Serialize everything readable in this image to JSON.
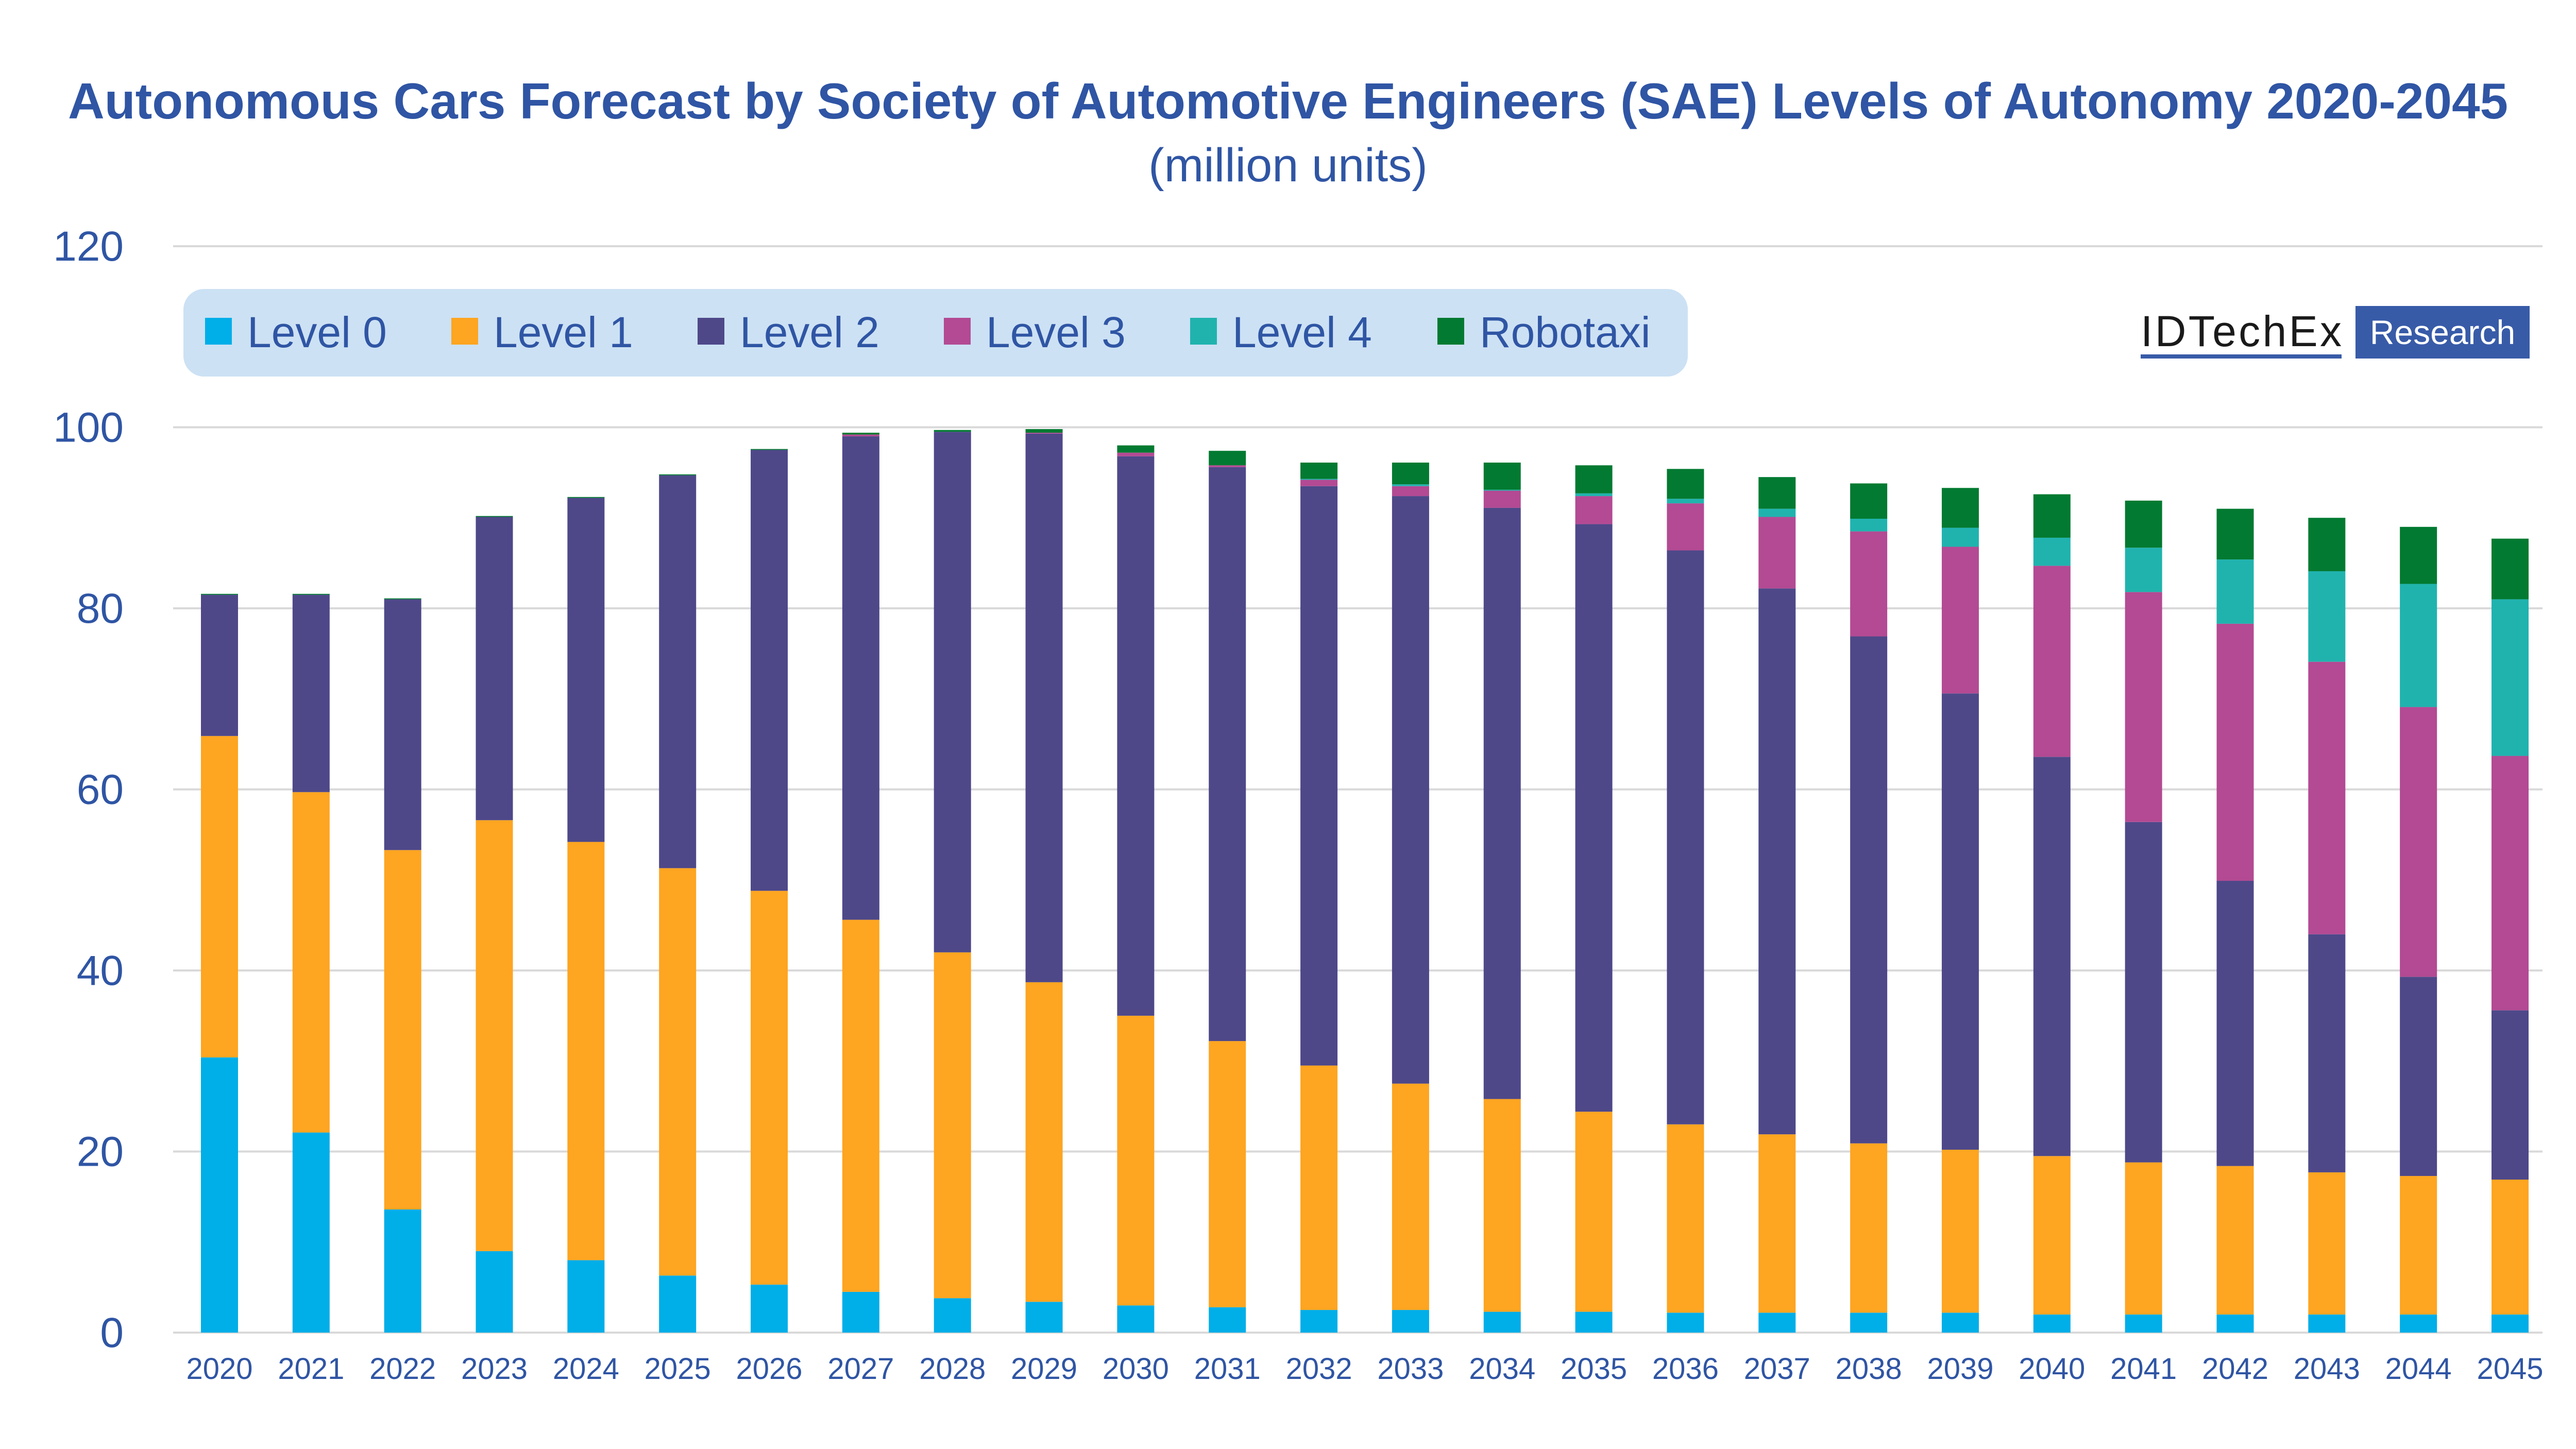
{
  "chart_data": {
    "type": "bar",
    "stacked": true,
    "title": "Autonomous Cars Forecast by Society of Automotive Engineers (SAE) Levels of Autonomy 2020-2045",
    "subtitle": "(million units)",
    "xlabel": "",
    "ylabel": "",
    "ylim": [
      0,
      120
    ],
    "yticks": [
      "0",
      "20",
      "40",
      "60",
      "80",
      "100",
      "120"
    ],
    "grid": true,
    "legend_position": "top-left",
    "categories": [
      "2020",
      "2021",
      "2022",
      "2023",
      "2024",
      "2025",
      "2026",
      "2027",
      "2028",
      "2029",
      "2030",
      "2031",
      "2032",
      "2033",
      "2034",
      "2035",
      "2036",
      "2037",
      "2038",
      "2039",
      "2040",
      "2041",
      "2042",
      "2043",
      "2044",
      "2045"
    ],
    "series": [
      {
        "name": "Level 0",
        "color": "#00aee8",
        "values": [
          30.4,
          22.1,
          13.6,
          9.0,
          8.0,
          6.3,
          5.3,
          4.5,
          3.8,
          3.4,
          3.0,
          2.8,
          2.5,
          2.5,
          2.3,
          2.3,
          2.2,
          2.2,
          2.2,
          2.2,
          2.0,
          2.0,
          2.0,
          2.0,
          2.0,
          2.0
        ]
      },
      {
        "name": "Level 1",
        "color": "#fea521",
        "values": [
          35.5,
          37.6,
          39.7,
          47.6,
          46.2,
          45.0,
          43.5,
          41.1,
          38.2,
          35.3,
          32.0,
          29.4,
          27.0,
          25.0,
          23.5,
          22.1,
          20.8,
          19.7,
          18.7,
          18.0,
          17.5,
          16.8,
          16.4,
          15.7,
          15.3,
          14.9
        ]
      },
      {
        "name": "Level 2",
        "color": "#4e4889",
        "values": [
          15.6,
          21.8,
          27.7,
          33.5,
          38.0,
          43.4,
          48.7,
          53.4,
          57.5,
          60.6,
          61.8,
          63.4,
          64.0,
          64.9,
          65.3,
          64.9,
          63.4,
          60.3,
          56.0,
          50.4,
          44.1,
          37.6,
          31.5,
          26.3,
          22.0,
          18.7
        ]
      },
      {
        "name": "Level 3",
        "color": "#b34a93",
        "values": [
          0,
          0,
          0,
          0,
          0,
          0,
          0,
          0.2,
          0,
          0.1,
          0.4,
          0.2,
          0.7,
          1.1,
          1.9,
          3.1,
          5.2,
          7.9,
          11.6,
          16.2,
          21.1,
          25.4,
          28.4,
          30.1,
          29.8,
          28.1
        ]
      },
      {
        "name": "Level 4",
        "color": "#20b3ae",
        "values": [
          0,
          0,
          0,
          0,
          0,
          0,
          0,
          0,
          0,
          0,
          0,
          0,
          0.1,
          0.2,
          0.1,
          0.3,
          0.5,
          0.9,
          1.4,
          2.1,
          3.1,
          4.9,
          7.1,
          10.0,
          13.6,
          17.3
        ]
      },
      {
        "name": "Robotaxi",
        "color": "#027a31",
        "values": [
          0.1,
          0.1,
          0.1,
          0.1,
          0.1,
          0.1,
          0.1,
          0.2,
          0.2,
          0.4,
          0.8,
          1.6,
          1.8,
          2.4,
          3.0,
          3.1,
          3.3,
          3.5,
          3.9,
          4.4,
          4.8,
          5.2,
          5.6,
          5.9,
          6.3,
          6.7
        ]
      }
    ]
  },
  "logo": {
    "name": "IDTechEx",
    "tag": "Research",
    "color": "#385ba8"
  },
  "colors": {
    "text": "#2f55a4",
    "legend_bg": "#cce1f4",
    "grid": "#d9d9d9"
  }
}
